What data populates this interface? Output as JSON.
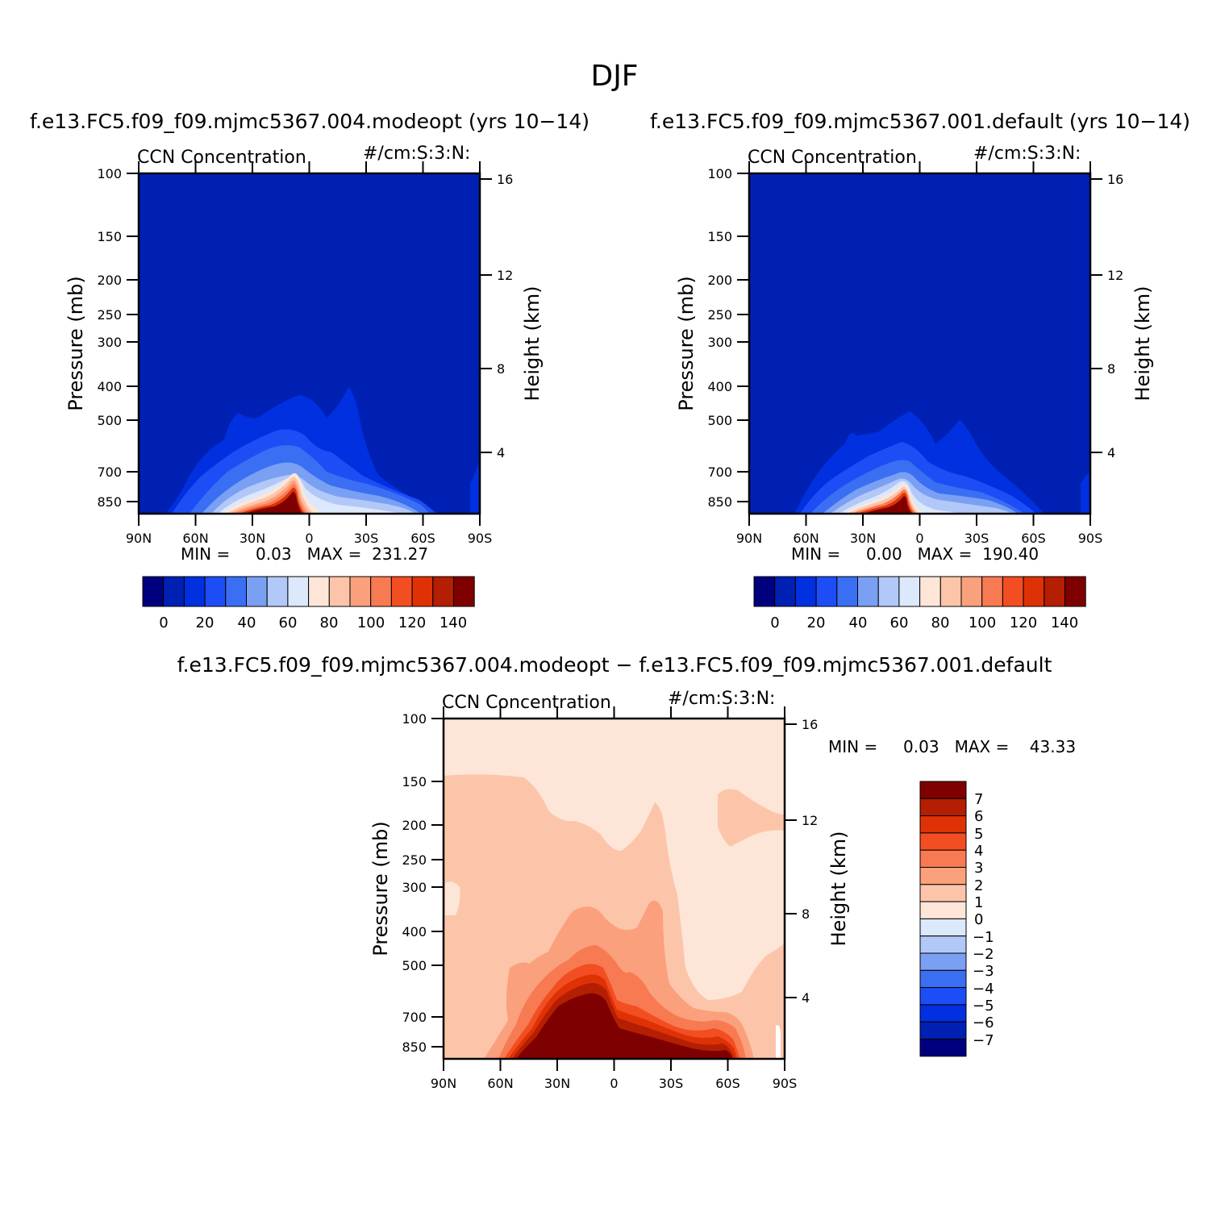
{
  "figure": {
    "title": "DJF"
  },
  "colors": {
    "absolute_scale": [
      "#00007f",
      "#0020b4",
      "#0030e0",
      "#1d4ef5",
      "#3a6ff4",
      "#7aa0f4",
      "#b2c8f8",
      "#dce8fb",
      "#fde6d8",
      "#fcc5aa",
      "#fba07c",
      "#f87a52",
      "#f34e22",
      "#de3206",
      "#b41e02",
      "#7f0000"
    ],
    "diff_scale": [
      "#00007f",
      "#0020b4",
      "#0030e0",
      "#1d4ef5",
      "#3a6ff4",
      "#7aa0f4",
      "#b2c8f8",
      "#dce8fb",
      "#fde6d8",
      "#fcc5aa",
      "#fba07c",
      "#f87a52",
      "#f34e22",
      "#de3206",
      "#b41e02",
      "#7f0000"
    ]
  },
  "chart_data": [
    {
      "type": "contour",
      "title": "f.e13.FC5.f09_f09.mjmc5367.004.modeopt (yrs 10−14)",
      "subtitle_left": "CCN Concentration",
      "subtitle_right": "#/cm:S:3:N:",
      "ylabel": "Pressure (mb)",
      "ylabel_right": "Height (km)",
      "x_ticks": [
        "90N",
        "60N",
        "30N",
        "0",
        "30S",
        "60S",
        "90S"
      ],
      "y_ticks": [
        "100",
        "150",
        "200",
        "250",
        "300",
        "400",
        "500",
        "700",
        "850"
      ],
      "y_ticks_right": [
        "16",
        "12",
        "8",
        "4"
      ],
      "min_text": "MIN =     0.03   MAX =  231.27",
      "min": 0.03,
      "max": 231.27,
      "colorbar_labels": [
        "0",
        "20",
        "40",
        "60",
        "80",
        "100",
        "120",
        "140"
      ],
      "levels": [
        0,
        10,
        20,
        30,
        40,
        50,
        60,
        70,
        80,
        90,
        100,
        110,
        120,
        130,
        140
      ]
    },
    {
      "type": "contour",
      "title": "f.e13.FC5.f09_f09.mjmc5367.001.default (yrs 10−14)",
      "subtitle_left": "CCN Concentration",
      "subtitle_right": "#/cm:S:3:N:",
      "ylabel": "Pressure (mb)",
      "ylabel_right": "Height (km)",
      "x_ticks": [
        "90N",
        "60N",
        "30N",
        "0",
        "30S",
        "60S",
        "90S"
      ],
      "y_ticks": [
        "100",
        "150",
        "200",
        "250",
        "300",
        "400",
        "500",
        "700",
        "850"
      ],
      "y_ticks_right": [
        "16",
        "12",
        "8",
        "4"
      ],
      "min_text": "MIN =     0.00   MAX =  190.40",
      "min": 0.0,
      "max": 190.4,
      "colorbar_labels": [
        "0",
        "20",
        "40",
        "60",
        "80",
        "100",
        "120",
        "140"
      ],
      "levels": [
        0,
        10,
        20,
        30,
        40,
        50,
        60,
        70,
        80,
        90,
        100,
        110,
        120,
        130,
        140
      ]
    },
    {
      "type": "contour",
      "title": "f.e13.FC5.f09_f09.mjmc5367.004.modeopt − f.e13.FC5.f09_f09.mjmc5367.001.default",
      "subtitle_left": "CCN Concentration",
      "subtitle_right": "#/cm:S:3:N:",
      "ylabel": "Pressure (mb)",
      "ylabel_right": "Height (km)",
      "x_ticks": [
        "90N",
        "60N",
        "30N",
        "0",
        "30S",
        "60S",
        "90S"
      ],
      "y_ticks": [
        "100",
        "150",
        "200",
        "250",
        "300",
        "400",
        "500",
        "700",
        "850"
      ],
      "y_ticks_right": [
        "16",
        "12",
        "8",
        "4"
      ],
      "min_text": "MIN =     0.03   MAX =    43.33",
      "min": 0.03,
      "max": 43.33,
      "colorbar_labels": [
        "7",
        "6",
        "5",
        "4",
        "3",
        "2",
        "1",
        "0",
        "−1",
        "−2",
        "−3",
        "−4",
        "−5",
        "−6",
        "−7"
      ],
      "levels": [
        -7,
        -6,
        -5,
        -4,
        -3,
        -2,
        -1,
        0,
        1,
        2,
        3,
        4,
        5,
        6,
        7
      ]
    }
  ]
}
